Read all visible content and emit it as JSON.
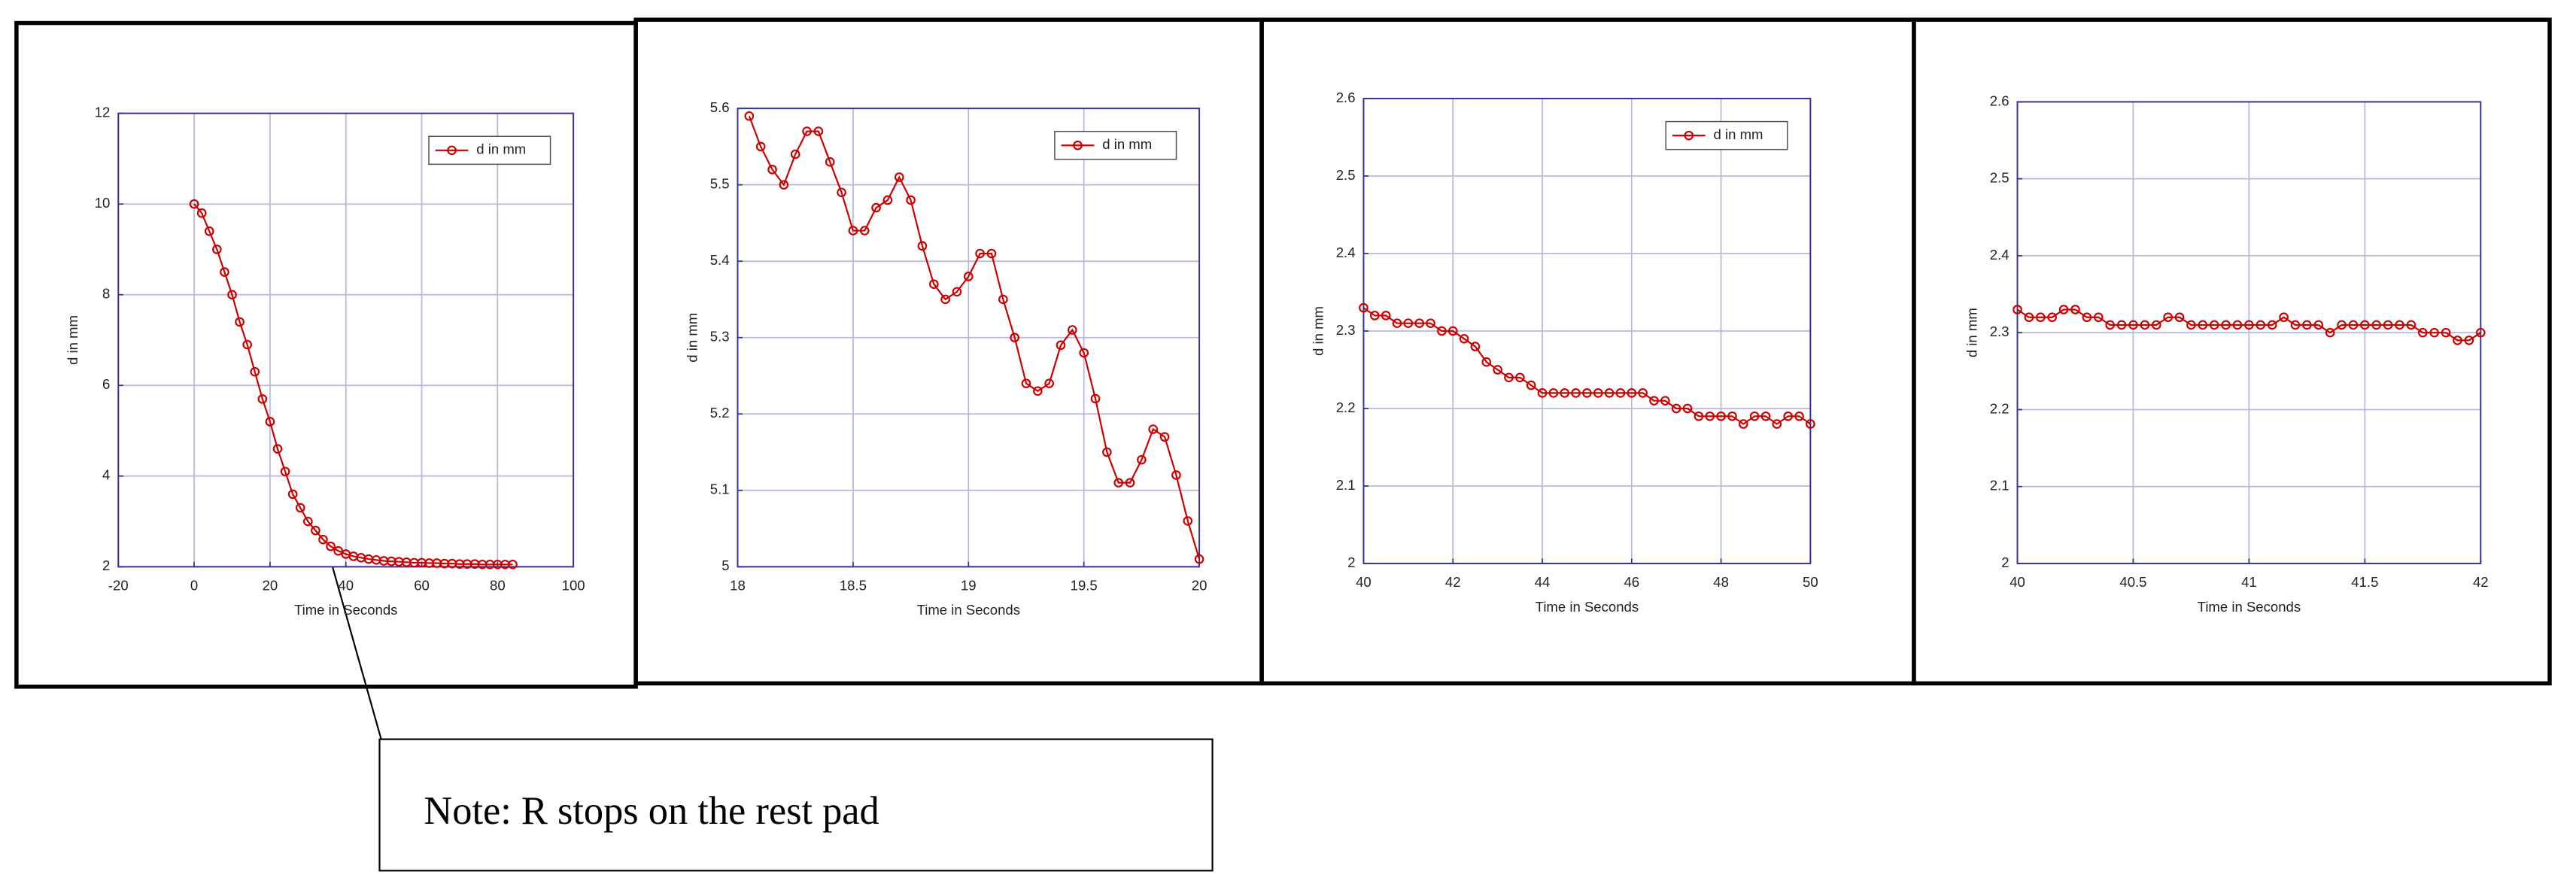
{
  "chart_data": [
    {
      "type": "line",
      "xlabel": "Time in Seconds",
      "ylabel": "d in mm",
      "legend": "upper right",
      "grid": true,
      "xlim": [
        -20,
        100
      ],
      "xticks": [
        -20,
        0,
        20,
        40,
        60,
        80,
        100
      ],
      "ylim": [
        2,
        12
      ],
      "yticks": [
        2,
        4,
        6,
        8,
        10,
        12
      ],
      "x": [
        0,
        2,
        4,
        6,
        8,
        10,
        12,
        14,
        16,
        18,
        20,
        22,
        24,
        26,
        28,
        30,
        32,
        34,
        36,
        38,
        40,
        42,
        44,
        46,
        48,
        50,
        52,
        54,
        56,
        58,
        60,
        62,
        64,
        66,
        68,
        70,
        72,
        74,
        76,
        78,
        80,
        82,
        84
      ],
      "series": [
        {
          "name": "d in mm",
          "color": "#cc0000",
          "values": [
            10,
            9.8,
            9.4,
            9.0,
            8.5,
            8.0,
            7.4,
            6.9,
            6.3,
            5.7,
            5.2,
            4.6,
            4.1,
            3.6,
            3.3,
            3.0,
            2.8,
            2.6,
            2.45,
            2.35,
            2.28,
            2.23,
            2.2,
            2.17,
            2.15,
            2.13,
            2.12,
            2.11,
            2.1,
            2.09,
            2.09,
            2.08,
            2.08,
            2.07,
            2.07,
            2.06,
            2.06,
            2.06,
            2.05,
            2.05,
            2.05,
            2.05,
            2.05
          ]
        }
      ]
    },
    {
      "type": "line",
      "xlabel": "Time in Seconds",
      "ylabel": "d in mm",
      "legend": "upper right",
      "grid": true,
      "xlim": [
        18,
        20
      ],
      "xticks": [
        18,
        18.5,
        19,
        19.5,
        20
      ],
      "ylim": [
        5,
        5.6
      ],
      "yticks": [
        5,
        5.1,
        5.2,
        5.3,
        5.4,
        5.5,
        5.6
      ],
      "x": [
        18.05,
        18.1,
        18.15,
        18.2,
        18.25,
        18.3,
        18.35,
        18.4,
        18.45,
        18.5,
        18.55,
        18.6,
        18.65,
        18.7,
        18.75,
        18.8,
        18.85,
        18.9,
        18.95,
        19.0,
        19.05,
        19.1,
        19.15,
        19.2,
        19.25,
        19.3,
        19.35,
        19.4,
        19.45,
        19.5,
        19.55,
        19.6,
        19.65,
        19.7,
        19.75,
        19.8,
        19.85,
        19.9,
        19.95,
        20.0
      ],
      "series": [
        {
          "name": "d in mm",
          "color": "#cc0000",
          "values": [
            5.59,
            5.55,
            5.52,
            5.5,
            5.54,
            5.57,
            5.57,
            5.53,
            5.49,
            5.44,
            5.44,
            5.47,
            5.48,
            5.51,
            5.48,
            5.42,
            5.37,
            5.35,
            5.36,
            5.38,
            5.41,
            5.41,
            5.35,
            5.3,
            5.24,
            5.23,
            5.24,
            5.29,
            5.31,
            5.28,
            5.22,
            5.15,
            5.11,
            5.11,
            5.14,
            5.18,
            5.17,
            5.12,
            5.06,
            5.01
          ]
        }
      ]
    },
    {
      "type": "line",
      "xlabel": "Time in Seconds",
      "ylabel": "d in mm",
      "legend": "upper right",
      "grid": true,
      "xlim": [
        40,
        50
      ],
      "xticks": [
        40,
        42,
        44,
        46,
        48,
        50
      ],
      "ylim": [
        2,
        2.6
      ],
      "yticks": [
        2,
        2.1,
        2.2,
        2.3,
        2.4,
        2.5,
        2.6
      ],
      "x": [
        40,
        40.25,
        40.5,
        40.75,
        41,
        41.25,
        41.5,
        41.75,
        42,
        42.25,
        42.5,
        42.75,
        43,
        43.25,
        43.5,
        43.75,
        44,
        44.25,
        44.5,
        44.75,
        45,
        45.25,
        45.5,
        45.75,
        46,
        46.25,
        46.5,
        46.75,
        47,
        47.25,
        47.5,
        47.75,
        48,
        48.25,
        48.5,
        48.75,
        49,
        49.25,
        49.5,
        49.75,
        50
      ],
      "series": [
        {
          "name": "d in mm",
          "color": "#cc0000",
          "values": [
            2.33,
            2.32,
            2.32,
            2.31,
            2.31,
            2.31,
            2.31,
            2.3,
            2.3,
            2.29,
            2.28,
            2.26,
            2.25,
            2.24,
            2.24,
            2.23,
            2.22,
            2.22,
            2.22,
            2.22,
            2.22,
            2.22,
            2.22,
            2.22,
            2.22,
            2.22,
            2.21,
            2.21,
            2.2,
            2.2,
            2.19,
            2.19,
            2.19,
            2.19,
            2.18,
            2.19,
            2.19,
            2.18,
            2.19,
            2.19,
            2.18
          ]
        }
      ]
    },
    {
      "type": "line",
      "xlabel": "Time in Seconds",
      "ylabel": "d in mm",
      "grid": true,
      "xlim": [
        40,
        42
      ],
      "xticks": [
        40,
        40.5,
        41,
        41.5,
        42
      ],
      "ylim": [
        2,
        2.6
      ],
      "yticks": [
        2,
        2.1,
        2.2,
        2.3,
        2.4,
        2.5,
        2.6
      ],
      "x": [
        40,
        40.05,
        40.1,
        40.15,
        40.2,
        40.25,
        40.3,
        40.35,
        40.4,
        40.45,
        40.5,
        40.55,
        40.6,
        40.65,
        40.7,
        40.75,
        40.8,
        40.85,
        40.9,
        40.95,
        41,
        41.05,
        41.1,
        41.15,
        41.2,
        41.25,
        41.3,
        41.35,
        41.4,
        41.45,
        41.5,
        41.55,
        41.6,
        41.65,
        41.7,
        41.75,
        41.8,
        41.85,
        41.9,
        41.95,
        42
      ],
      "series": [
        {
          "color": "#cc0000",
          "values": [
            2.33,
            2.32,
            2.32,
            2.32,
            2.33,
            2.33,
            2.32,
            2.32,
            2.31,
            2.31,
            2.31,
            2.31,
            2.31,
            2.32,
            2.32,
            2.31,
            2.31,
            2.31,
            2.31,
            2.31,
            2.31,
            2.31,
            2.31,
            2.32,
            2.31,
            2.31,
            2.31,
            2.3,
            2.31,
            2.31,
            2.31,
            2.31,
            2.31,
            2.31,
            2.31,
            2.3,
            2.3,
            2.3,
            2.29,
            2.29,
            2.3
          ]
        }
      ]
    }
  ],
  "note": {
    "text": "Note:  R stops on the rest pad"
  }
}
